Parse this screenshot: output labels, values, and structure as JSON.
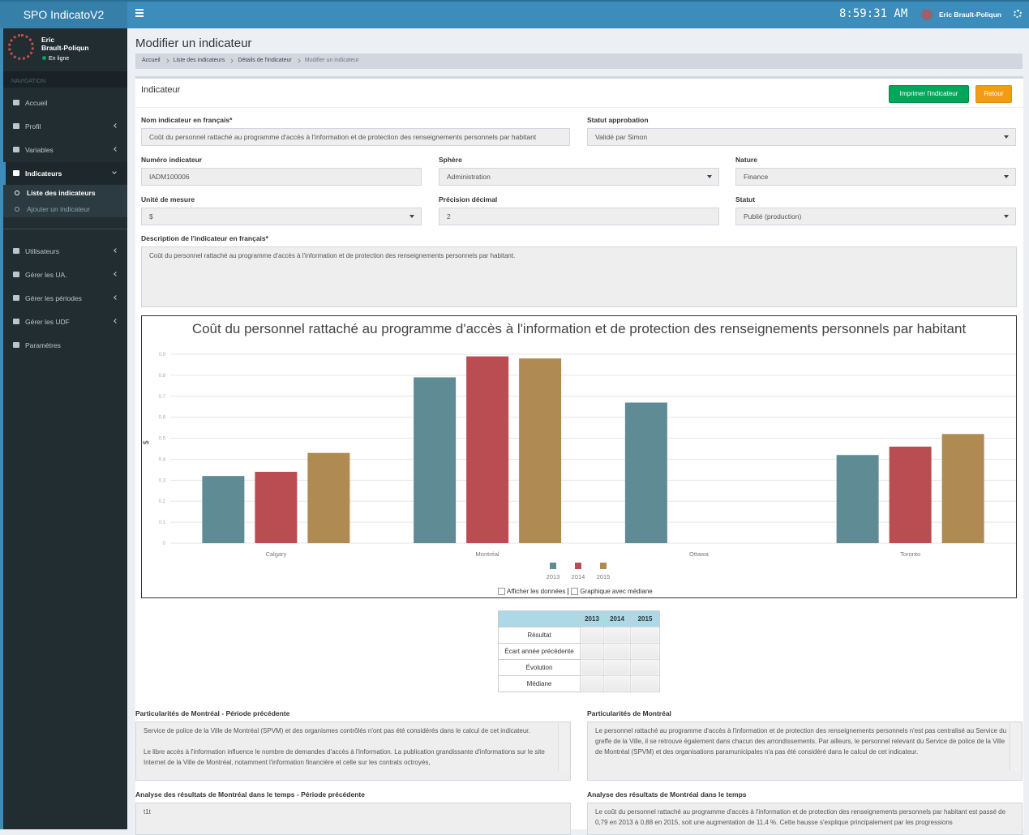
{
  "header": {
    "logo": "SPO IndicatoV2",
    "time": "8:59:31 AM",
    "user": "Eric Brault-Poliqun"
  },
  "sidebar": {
    "user_first": "Eric",
    "user_last": "Brault-Poliqun",
    "status": "En ligne",
    "section": "NAVIGATION",
    "menu": [
      "Accueil",
      "Profil",
      "Variables",
      "Indicateurs",
      "Utilisateurs",
      "Gérer les UA.",
      "Gérer les périodes",
      "Gérer les UDF",
      "Paramètres"
    ],
    "submenu": [
      "Liste des indicateurs",
      "Ajouter un indicateur"
    ]
  },
  "page": {
    "title": "Modifier un indicateur",
    "breadcrumb": [
      "Accueil",
      "Liste des indicateurs",
      "Détails de l'indicateur",
      "Modifier un indicateur"
    ]
  },
  "box": {
    "title": "Indicateur",
    "buttons": [
      "Imprimer l'indicateur",
      "Retour"
    ]
  },
  "form": {
    "fields": [
      {
        "label": "Nom indicateur en français*",
        "value": "Coût du personnel rattaché au programme d'accès à l'information et de protection des renseignements personnels par habitant"
      },
      {
        "label": "Statut approbation",
        "value": "Validé par Simon"
      },
      {
        "label": "Numéro indicateur",
        "value": "IADM100006"
      },
      {
        "label": "Sphère",
        "value": "Administration"
      },
      {
        "label": "Nature",
        "value": "Finance"
      },
      {
        "label": "Unité de mesure",
        "value": "$"
      },
      {
        "label": "Précision décimal",
        "value": "2"
      },
      {
        "label": "Statut",
        "value": "Publié (production)"
      }
    ],
    "description": {
      "label": "Description de l'indicateur en français*",
      "value": "Coût du personnel rattaché au programme d'accès à l'information et de protection des renseignements personnels par habitant."
    }
  },
  "chart_data": {
    "type": "bar",
    "title": "Coût du personnel rattaché au programme d'accès à l'information et de protection des renseignements personnels par habitant",
    "ylabel": "$",
    "categories": [
      "Calgary",
      "Montréal",
      "Ottawa",
      "Toronto"
    ],
    "series": [
      {
        "name": "2013",
        "color": "#5f8b95",
        "values": [
          0.32,
          0.79,
          0.67,
          0.42
        ]
      },
      {
        "name": "2014",
        "color": "#ba4d51",
        "values": [
          0.34,
          0.89,
          null,
          0.46
        ]
      },
      {
        "name": "2015",
        "color": "#af8a53",
        "values": [
          0.43,
          0.88,
          null,
          0.52
        ]
      }
    ],
    "ylim": [
      0,
      0.9
    ],
    "yticks": [
      0,
      0.1,
      0.2,
      0.3,
      0.4,
      0.5,
      0.6,
      0.7,
      0.8,
      0.9
    ],
    "grid": true,
    "legend": "bottom"
  },
  "chart_options": [
    "Afficher les données",
    "Graphique avec médiane"
  ],
  "table": {
    "columns": [
      "2013",
      "2014",
      "2015"
    ],
    "rows": [
      "Résultat",
      "Écart année précédente",
      "Évolution",
      "Médiane"
    ]
  },
  "notes": [
    {
      "label": "Particularités de Montréal - Période précédente",
      "text": "Service de police de la Ville de Montréal (SPVM) et des organismes contrôlés n'ont pas été considérés dans le calcul de cet indicateur.\n\nLe libre accès à l'information influence le nombre de demandes d'accès à l'information. La publication grandissante d'informations sur le site Internet de la Ville de Montréal, notamment l'information financière et celle sur les contrats octroyés,"
    },
    {
      "label": "Particularités de Montréal",
      "text": "Le personnel rattaché au programme d'accès à l'information et de protection des renseignements personnels n'est pas centralisé au Service du greffe de la Ville, il se retrouve également dans chacun des arrondissements. Par ailleurs, le personnel relevant du Service de police de la Ville de Montréal (SPVM) et des organisations paramunicipales n'a pas été considéré dans le calcul de cet indicateur."
    },
    {
      "label": "Analyse des résultats de Montréal dans le temps - Période précédente",
      "text": "t1t"
    },
    {
      "label": "Analyse des résultats de Montréal dans le temps",
      "text": "Le coût du personnel rattaché au programme d'accès à l'information et de protection des renseignements personnels par habitant est passé de 0,79 en 2013 à 0,88 en 2015, soit une augmentation de 11,4 %. Cette hausse s'explique principalement par les progressions"
    }
  ]
}
